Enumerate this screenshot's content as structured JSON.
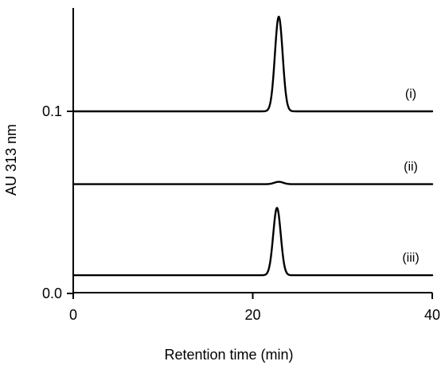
{
  "chart_data": {
    "type": "line",
    "title": "",
    "xlabel": "Retention time (min)",
    "ylabel": "AU 313 nm",
    "xlim": [
      0,
      40
    ],
    "ylim": [
      0,
      0.16
    ],
    "x_ticks": [
      {
        "value": 0,
        "label": "0"
      },
      {
        "value": 20,
        "label": "20"
      },
      {
        "value": 40,
        "label": "40"
      }
    ],
    "y_ticks": [
      {
        "value": 0.0,
        "label": "0.0"
      },
      {
        "value": 0.1,
        "label": "0.1"
      }
    ],
    "grid": false,
    "legend": "none",
    "line_color": "#000000",
    "series": [
      {
        "label": "(i)",
        "baseline": 0.1,
        "peak_time": 22.9,
        "peak_height": 0.052,
        "peak_width": 0.43,
        "x": [
          0,
          20,
          21.5,
          22.2,
          22.9,
          23.6,
          24.3,
          26,
          40
        ],
        "y": [
          0.1,
          0.1,
          0.1022,
          0.1302,
          0.152,
          0.1302,
          0.1022,
          0.1,
          0.1
        ]
      },
      {
        "label": "(ii)",
        "baseline": 0.06,
        "peak_time": 22.9,
        "peak_height": 0.0013,
        "peak_width": 0.5,
        "x": [
          0,
          20,
          21.5,
          22.2,
          22.9,
          23.6,
          24.3,
          26,
          40
        ],
        "y": [
          0.06,
          0.06,
          0.0601,
          0.0608,
          0.0613,
          0.0608,
          0.0601,
          0.06,
          0.06
        ]
      },
      {
        "label": "(iii)",
        "baseline": 0.01,
        "peak_time": 22.7,
        "peak_height": 0.037,
        "peak_width": 0.42,
        "x": [
          0,
          20,
          21.5,
          22.0,
          22.7,
          23.4,
          24.0,
          26,
          40
        ],
        "y": [
          0.01,
          0.01,
          0.0112,
          0.031,
          0.047,
          0.031,
          0.0112,
          0.01,
          0.01
        ]
      }
    ]
  }
}
